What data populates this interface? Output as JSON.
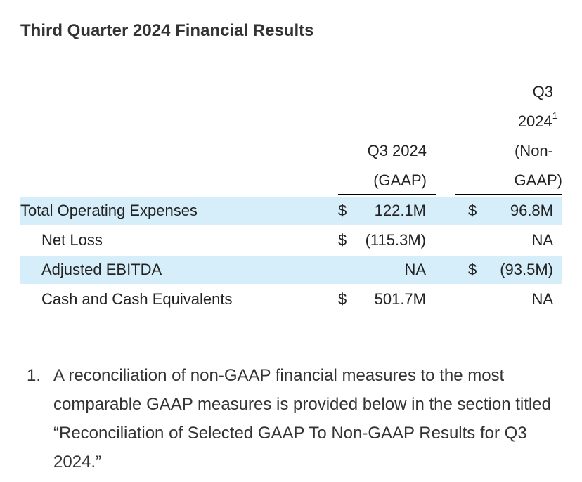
{
  "title": "Third Quarter 2024 Financial Results",
  "columns": {
    "gaap": {
      "line1": "Q3 2024",
      "line2": "(GAAP)"
    },
    "non_gaap": {
      "line1": "Q3",
      "line2": "2024",
      "footnote_mark": "1",
      "line3": "(Non-",
      "line4": "GAAP)"
    }
  },
  "rows": [
    {
      "label": "Total Operating Expenses",
      "gaap_dollar": "$",
      "gaap_value": "122.1M",
      "non_gaap_dollar": "$",
      "non_gaap_value": "96.8M",
      "shaded": true
    },
    {
      "label": "Net Loss",
      "gaap_dollar": "$",
      "gaap_value": "(115.3M)",
      "non_gaap_dollar": "",
      "non_gaap_value": "NA",
      "shaded": false
    },
    {
      "label": "Adjusted EBITDA",
      "gaap_dollar": "",
      "gaap_value": "NA",
      "non_gaap_dollar": "$",
      "non_gaap_value": "(93.5M)",
      "shaded": true
    },
    {
      "label": "Cash and Cash Equivalents",
      "gaap_dollar": "$",
      "gaap_value": "501.7M",
      "non_gaap_dollar": "",
      "non_gaap_value": "NA",
      "shaded": false
    }
  ],
  "footnote": {
    "number": "1.",
    "text": "A reconciliation of non-GAAP financial measures to the most comparable GAAP measures is provided below in the section titled “Reconciliation of Selected GAAP To Non-GAAP Results for Q3 2024.”"
  }
}
